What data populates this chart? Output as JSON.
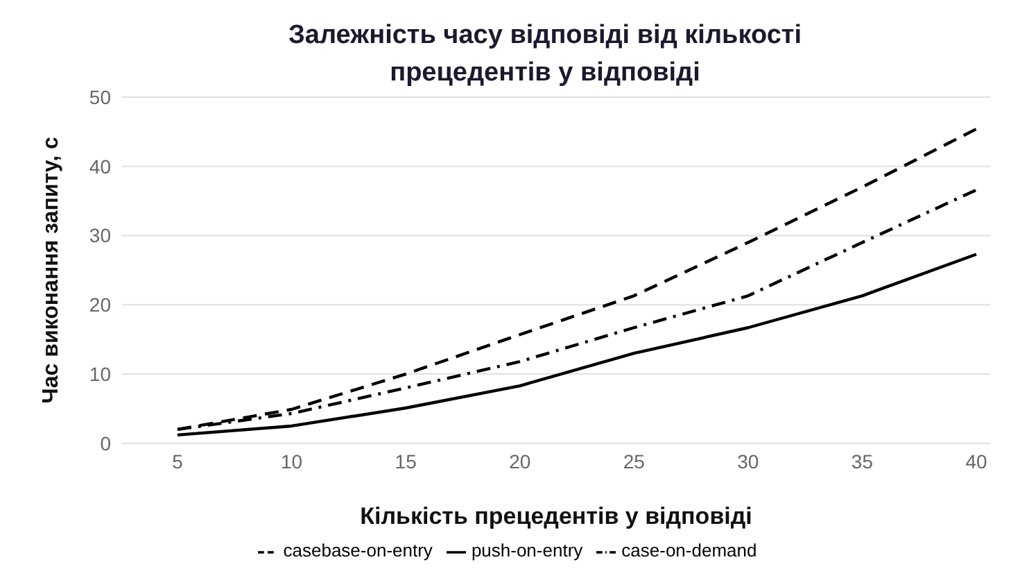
{
  "chart_data": {
    "type": "line",
    "title": "Залежність часу відповіді від кількості прецедентів у відповіді",
    "xlabel": "Кількість прецедентів у відповіді",
    "ylabel": "Час виконання запиту, с",
    "categories": [
      "5",
      "10",
      "15",
      "20",
      "25",
      "30",
      "35",
      "40"
    ],
    "ylim": [
      0,
      50
    ],
    "yticks": [
      0,
      10,
      20,
      30,
      40,
      50
    ],
    "grid": "y",
    "legend": "bottom",
    "marker": "none",
    "series": [
      {
        "name": "casebase-on-entry",
        "color": "#000000",
        "line_style": "dashed",
        "values": [
          2,
          4.9,
          10,
          15.7,
          21.3,
          29,
          37,
          45.4
        ]
      },
      {
        "name": "push-on-entry",
        "color": "#000000",
        "line_style": "solid",
        "values": [
          1.2,
          2.5,
          5.1,
          8.3,
          13,
          16.7,
          21.3,
          27.3
        ]
      },
      {
        "name": "case-on-demand",
        "color": "#000000",
        "line_style": "dashdot",
        "values": [
          2,
          4.3,
          8,
          11.8,
          16.7,
          21.3,
          29,
          36.6
        ]
      }
    ]
  }
}
